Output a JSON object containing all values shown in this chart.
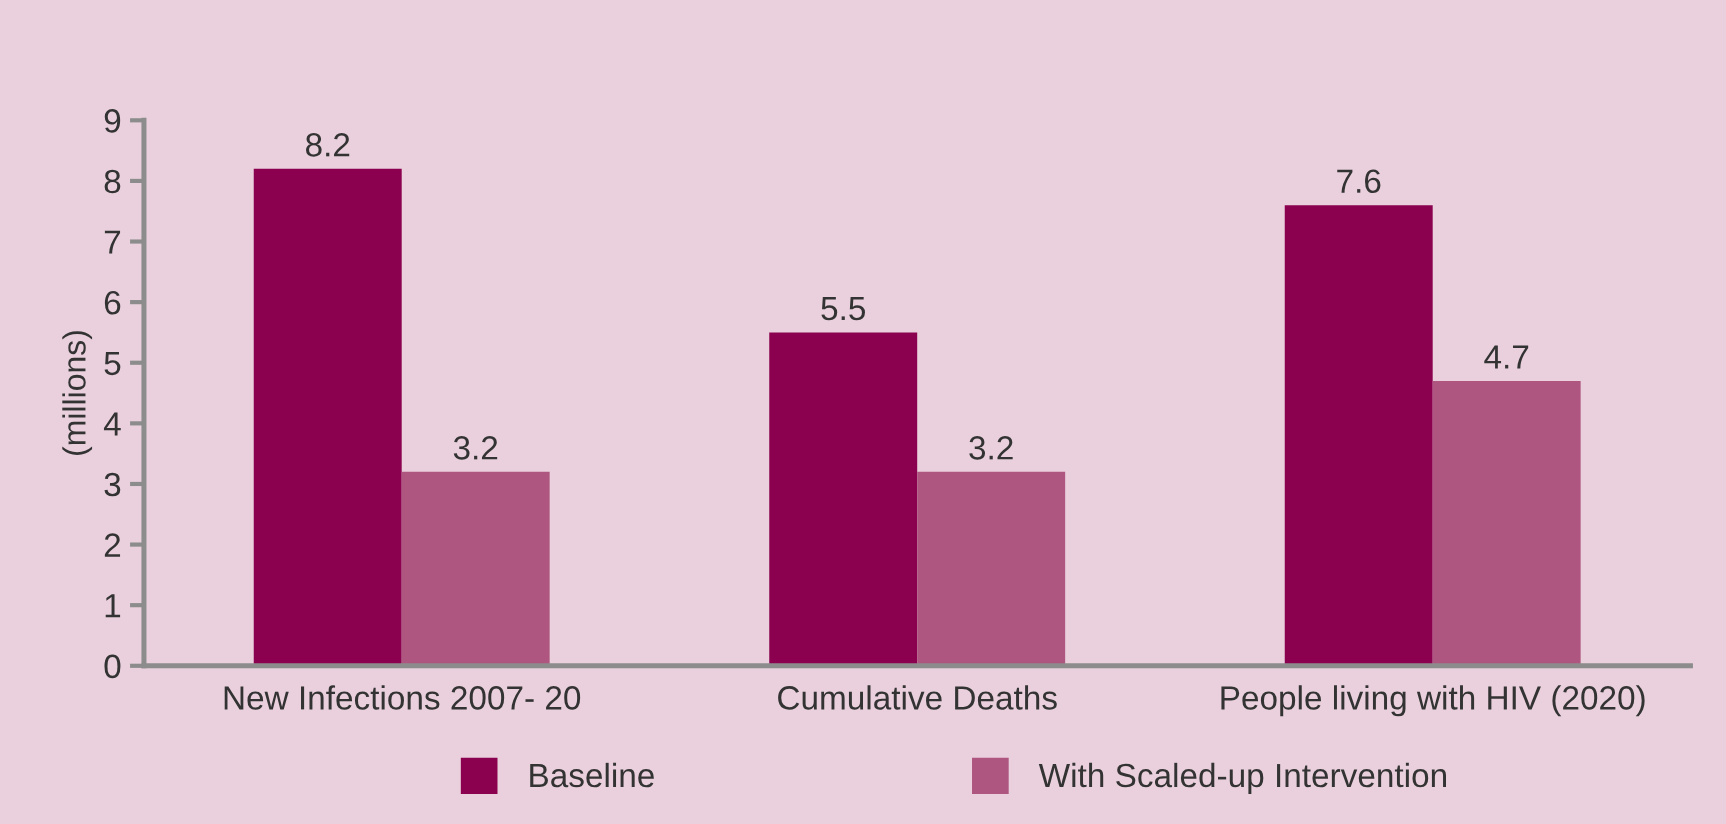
{
  "chart_data": {
    "type": "bar",
    "ylabel": "(millions)",
    "categories": [
      "New Infections 2007- 20",
      "Cumulative Deaths",
      "People living with HIV (2020)"
    ],
    "series": [
      {
        "name": "Baseline",
        "color": "#8b004f",
        "values": [
          8.2,
          5.5,
          7.6
        ]
      },
      {
        "name": "With Scaled-up Intervention",
        "color": "#ae567f",
        "values": [
          3.2,
          3.2,
          4.7
        ]
      }
    ],
    "ylim": [
      0,
      9
    ],
    "yticks": [
      0,
      1,
      2,
      3,
      4,
      5,
      6,
      7,
      8,
      9
    ],
    "data_labels": true,
    "grid": false,
    "legend": "bottom"
  }
}
